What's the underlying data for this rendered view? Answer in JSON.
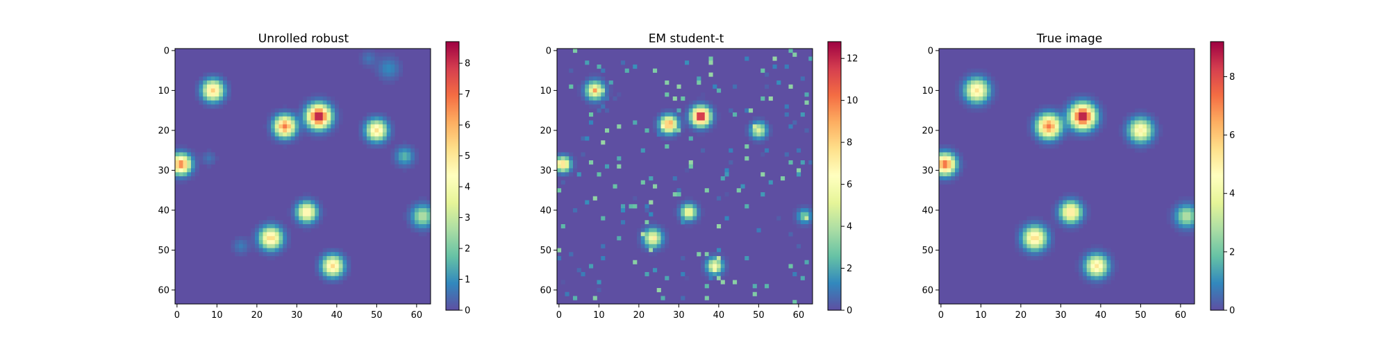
{
  "colors": {
    "spectral_r": [
      "#5e4fa2",
      "#3288bd",
      "#66c2a5",
      "#abdda4",
      "#e6f598",
      "#ffffbf",
      "#fee08b",
      "#fdae61",
      "#f46d43",
      "#d53e4f",
      "#9e0142"
    ],
    "background": "#5e4fa2"
  },
  "chart_data": [
    {
      "type": "heatmap",
      "title": "Unrolled robust",
      "grid_size": 64,
      "xticks": [
        0,
        10,
        20,
        30,
        40,
        50,
        60
      ],
      "yticks": [
        0,
        10,
        20,
        30,
        40,
        50,
        60
      ],
      "colorbar": {
        "min": 0,
        "max": 8.7,
        "ticks": [
          0,
          1,
          2,
          3,
          4,
          5,
          6,
          7,
          8
        ]
      },
      "blobs": [
        {
          "x": 9,
          "y": 10,
          "peak": 5.5,
          "sigma": 1.7
        },
        {
          "x": 27,
          "y": 19,
          "peak": 6.8,
          "sigma": 1.7
        },
        {
          "x": 35.5,
          "y": 16.5,
          "peak": 8.7,
          "sigma": 1.9
        },
        {
          "x": 50,
          "y": 20,
          "peak": 5.2,
          "sigma": 1.7
        },
        {
          "x": 1,
          "y": 28.5,
          "peak": 6.8,
          "sigma": 1.6
        },
        {
          "x": 32.5,
          "y": 40.5,
          "peak": 5.0,
          "sigma": 1.6
        },
        {
          "x": 23.5,
          "y": 47,
          "peak": 5.4,
          "sigma": 1.8
        },
        {
          "x": 39,
          "y": 54,
          "peak": 5.3,
          "sigma": 1.7
        },
        {
          "x": 61.5,
          "y": 41.5,
          "peak": 2.8,
          "sigma": 1.8
        },
        {
          "x": 57,
          "y": 26.5,
          "peak": 1.6,
          "sigma": 1.5
        },
        {
          "x": 53,
          "y": 4.5,
          "peak": 0.9,
          "sigma": 1.8
        },
        {
          "x": 48,
          "y": 2,
          "peak": 0.6,
          "sigma": 1.2
        },
        {
          "x": 16,
          "y": 49,
          "peak": 0.7,
          "sigma": 1.3
        },
        {
          "x": 8,
          "y": 27,
          "peak": 0.6,
          "sigma": 1.1
        }
      ]
    },
    {
      "type": "heatmap",
      "title": "EM student-t",
      "grid_size": 64,
      "xticks": [
        0,
        10,
        20,
        30,
        40,
        50,
        60
      ],
      "yticks": [
        0,
        10,
        20,
        30,
        40,
        50,
        60
      ],
      "colorbar": {
        "min": 0,
        "max": 12.8,
        "ticks": [
          0,
          2,
          4,
          6,
          8,
          10,
          12
        ]
      },
      "blobs": [
        {
          "x": 9,
          "y": 10,
          "peak": 6.5,
          "sigma": 1.5
        },
        {
          "x": 27.5,
          "y": 18.5,
          "peak": 9.0,
          "sigma": 1.4
        },
        {
          "x": 35.5,
          "y": 16.5,
          "peak": 12.8,
          "sigma": 1.5
        },
        {
          "x": 50,
          "y": 20,
          "peak": 5.0,
          "sigma": 1.3
        },
        {
          "x": 1,
          "y": 28.5,
          "peak": 8.0,
          "sigma": 1.2
        },
        {
          "x": 32.5,
          "y": 40.5,
          "peak": 6.0,
          "sigma": 1.3
        },
        {
          "x": 23.5,
          "y": 47,
          "peak": 6.0,
          "sigma": 1.5
        },
        {
          "x": 39,
          "y": 54,
          "peak": 6.0,
          "sigma": 1.3
        },
        {
          "x": 61.5,
          "y": 41.5,
          "peak": 3.0,
          "sigma": 1.2
        }
      ],
      "noise": {
        "density": 0.05,
        "max": 3.5,
        "seed": 7
      }
    },
    {
      "type": "heatmap",
      "title": "True image",
      "grid_size": 64,
      "xticks": [
        0,
        10,
        20,
        30,
        40,
        50,
        60
      ],
      "yticks": [
        0,
        10,
        20,
        30,
        40,
        50,
        60
      ],
      "colorbar": {
        "min": 0,
        "max": 9.2,
        "ticks": [
          0,
          2,
          4,
          6,
          8
        ]
      },
      "blobs": [
        {
          "x": 9,
          "y": 10,
          "peak": 5.4,
          "sigma": 1.9
        },
        {
          "x": 27,
          "y": 19,
          "peak": 7.2,
          "sigma": 1.9
        },
        {
          "x": 35.5,
          "y": 16.5,
          "peak": 9.2,
          "sigma": 2.0
        },
        {
          "x": 50,
          "y": 20,
          "peak": 5.0,
          "sigma": 1.9
        },
        {
          "x": 1,
          "y": 28.5,
          "peak": 7.5,
          "sigma": 1.7
        },
        {
          "x": 32.5,
          "y": 40.5,
          "peak": 5.5,
          "sigma": 1.7
        },
        {
          "x": 23.5,
          "y": 47,
          "peak": 5.6,
          "sigma": 1.9
        },
        {
          "x": 39,
          "y": 54,
          "peak": 5.3,
          "sigma": 1.8
        },
        {
          "x": 61.5,
          "y": 41.5,
          "peak": 3.0,
          "sigma": 1.8
        }
      ]
    }
  ]
}
